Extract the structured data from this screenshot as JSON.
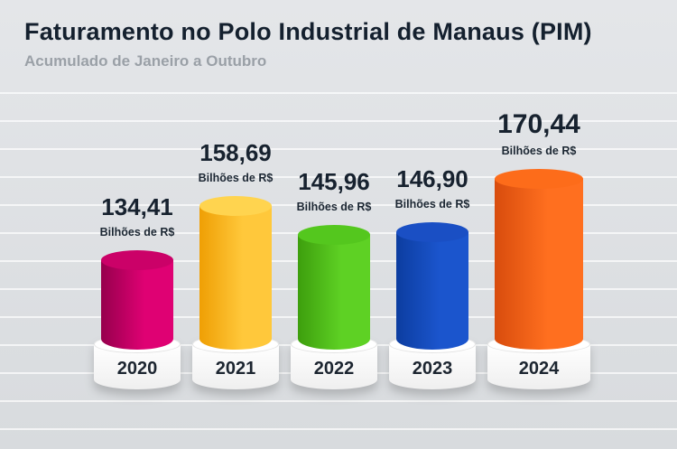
{
  "header": {
    "title": "Faturamento no Polo Industrial de Manaus (PIM)",
    "subtitle": "Acumulado de Janeiro a Outubro"
  },
  "chart_data": {
    "type": "bar",
    "title": "Faturamento no Polo Industrial de Manaus (PIM)",
    "subtitle": "Acumulado de Janeiro a Outubro",
    "categories": [
      "2020",
      "2021",
      "2022",
      "2023",
      "2024"
    ],
    "values": [
      134.41,
      158.69,
      145.96,
      146.9,
      170.44
    ],
    "values_display": [
      "134,41",
      "158,69",
      "145,96",
      "146,90",
      "170,44"
    ],
    "unit_label": "Bilhões de R$",
    "ylabel": "Bilhões de R$",
    "xlabel": "",
    "legend": false,
    "grid": "horizontal",
    "colors": [
      {
        "name": "magenta",
        "main": "#df0173",
        "dark": "#96004d",
        "top": "#cb0168"
      },
      {
        "name": "yellow",
        "main": "#ffc83b",
        "dark": "#ef9f04",
        "top": "#ffd44f"
      },
      {
        "name": "green",
        "main": "#5ed124",
        "dark": "#3d9e0d",
        "top": "#54c71e"
      },
      {
        "name": "blue",
        "main": "#1b55cd",
        "dark": "#0c3da0",
        "top": "#1a4fc4"
      },
      {
        "name": "orange",
        "main": "#ff6f1f",
        "dark": "#d84c0d",
        "top": "#fd6c1a"
      }
    ]
  }
}
